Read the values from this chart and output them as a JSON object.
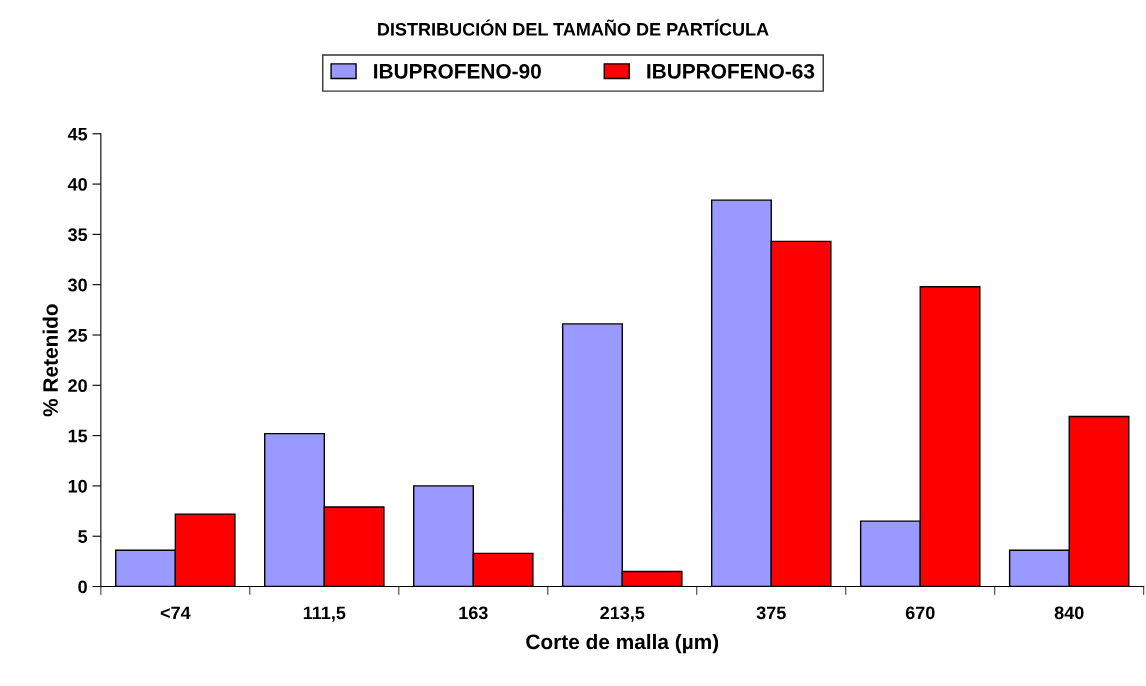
{
  "chart_data": {
    "type": "bar",
    "title": "DISTRIBUCIÓN DEL TAMAÑO DE PARTÍCULA",
    "xlabel": "Corte de malla (µm)",
    "ylabel": "% Retenido",
    "categories": [
      "<74",
      "111,5",
      "163",
      "213,5",
      "375",
      "670",
      "840"
    ],
    "series": [
      {
        "name": "IBUPROFENO-90",
        "color": "#9999ff",
        "values": [
          3.6,
          15.2,
          10.0,
          26.1,
          38.4,
          6.5,
          3.6
        ]
      },
      {
        "name": "IBUPROFENO-63",
        "color": "#ff0000",
        "values": [
          7.2,
          7.9,
          3.3,
          1.5,
          34.3,
          29.8,
          16.9
        ]
      }
    ],
    "ylim": [
      0,
      45
    ],
    "yticks": [
      0,
      5,
      10,
      15,
      20,
      25,
      30,
      35,
      40,
      45
    ],
    "grid": false,
    "legend": "top"
  }
}
